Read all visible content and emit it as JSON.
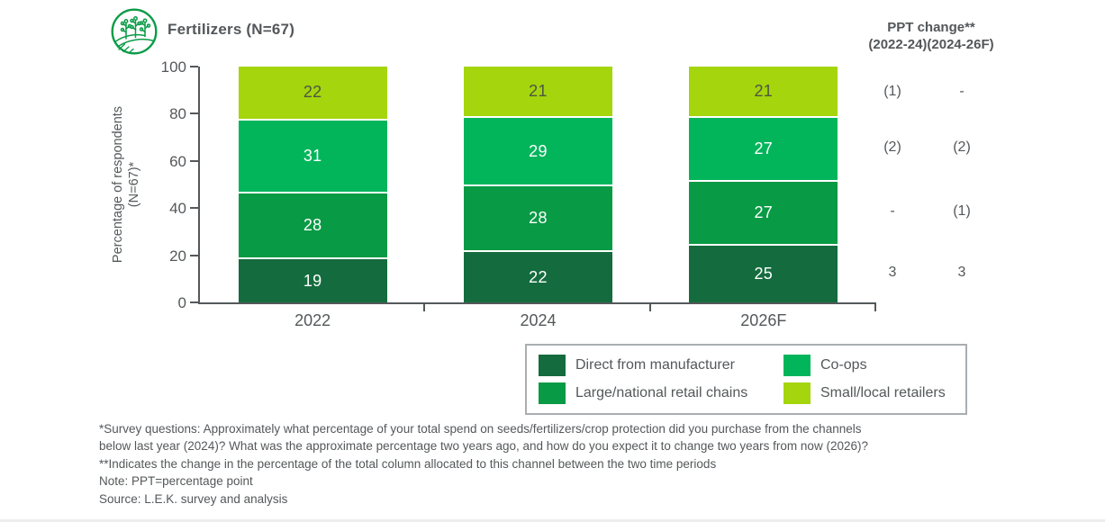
{
  "header": {
    "title": "Fertilizers (N=67)",
    "icon": "crops-field-icon",
    "ppt_header_line1": "PPT change**",
    "ppt_header_line2": "(2022-24)(2024-26F)"
  },
  "chart_data": {
    "type": "bar",
    "stacked": true,
    "title": "Fertilizers (N=67)",
    "ylabel_line1": "Percentage of respondents",
    "ylabel_line2": "(N=67)*",
    "ylim": [
      0,
      100
    ],
    "yticks": [
      0,
      20,
      40,
      60,
      80,
      100
    ],
    "grid": false,
    "categories": [
      "2022",
      "2024",
      "2026F"
    ],
    "series": [
      {
        "name": "Direct from manufacturer",
        "color": "#146c3e",
        "label_color": "#ffffff",
        "values": [
          19,
          22,
          25
        ],
        "ppt_change": [
          "3",
          "3"
        ]
      },
      {
        "name": "Large/national retail chains",
        "color": "#089a44",
        "label_color": "#ffffff",
        "values": [
          28,
          28,
          27
        ],
        "ppt_change": [
          "-",
          "(1)"
        ]
      },
      {
        "name": "Co-ops",
        "color": "#02b55b",
        "label_color": "#ffffff",
        "values": [
          31,
          29,
          27
        ],
        "ppt_change": [
          "(2)",
          "(2)"
        ]
      },
      {
        "name": "Small/local retailers",
        "color": "#a5d50d",
        "label_color": "#4d5742",
        "values": [
          22,
          21,
          21
        ],
        "ppt_change": [
          "(1)",
          "-"
        ]
      }
    ],
    "ppt_change_columns": [
      "(2022-24)",
      "(2024-26F)"
    ],
    "legend_position": "bottom-right"
  },
  "legend": {
    "items": [
      {
        "label": "Direct from manufacturer",
        "color": "#146c3e"
      },
      {
        "label": "Co-ops",
        "color": "#02b55b"
      },
      {
        "label": "Large/national retail chains",
        "color": "#089a44"
      },
      {
        "label": "Small/local retailers",
        "color": "#a5d50d"
      }
    ]
  },
  "footnotes": [
    "*Survey questions: Approximately what percentage of your total spend on seeds/fertilizers/crop protection did you purchase from the channels",
    "below last year (2024)? What was the approximate percentage two years ago, and how do you expect it to change two years from now (2026)?",
    "**Indicates the change in the percentage of the total column allocated to this channel between the two time periods",
    "Note: PPT=percentage point",
    "Source: L.E.K. survey and analysis"
  ],
  "colors": {
    "text": "#54585a",
    "axis": "#54585a",
    "icon_green": "#0b9b46",
    "legend_border": "#a9aeb1"
  }
}
